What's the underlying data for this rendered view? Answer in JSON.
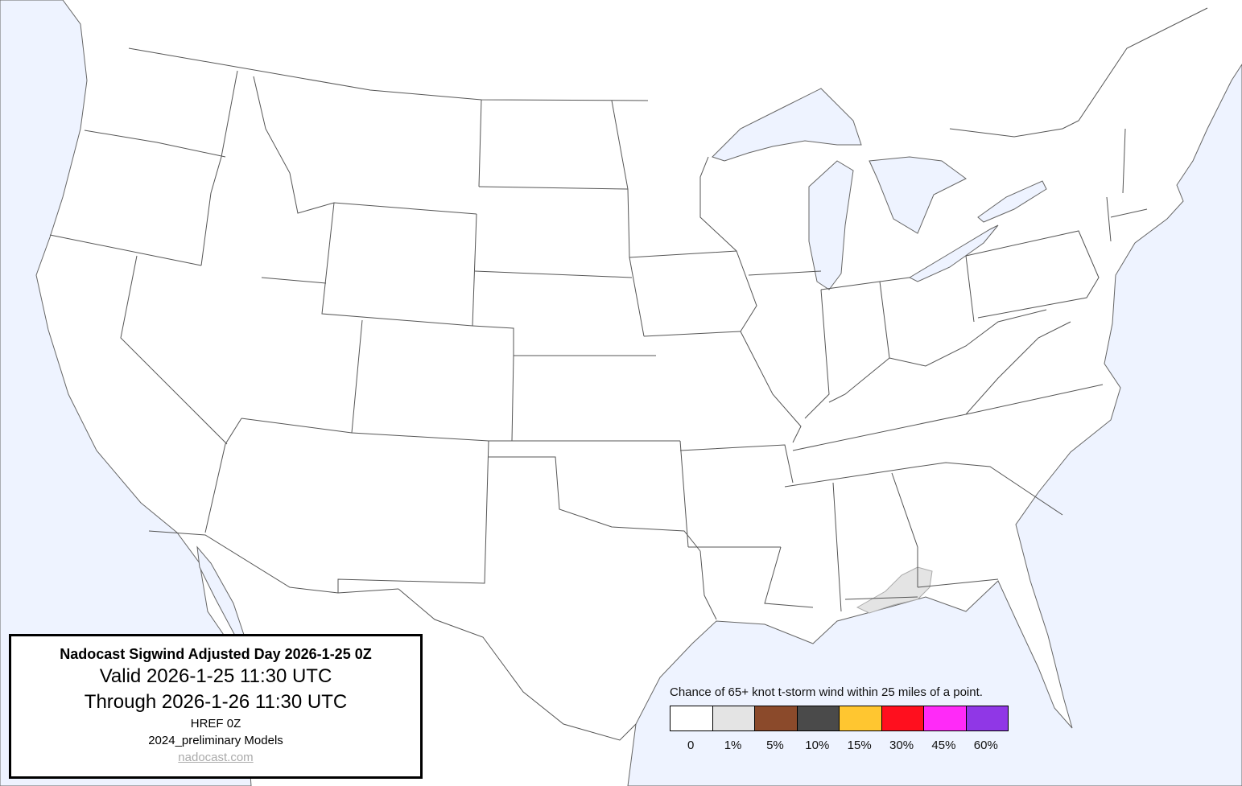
{
  "title_box": {
    "title": "Nadocast Sigwind Adjusted Day 2026-1-25 0Z",
    "valid": "Valid 2026-1-25 11:30 UTC",
    "through": "Through 2026-1-26 11:30 UTC",
    "model": "HREF 0Z",
    "models_version": "2024_preliminary Models",
    "link": "nadocast.com"
  },
  "legend": {
    "title": "Chance of 65+ knot t-storm wind within 25 miles of a point.",
    "items": [
      {
        "label": "0",
        "color": "#ffffff"
      },
      {
        "label": "1%",
        "color": "#e4e4e4"
      },
      {
        "label": "5%",
        "color": "#8b4a2b"
      },
      {
        "label": "10%",
        "color": "#4a4a4a"
      },
      {
        "label": "15%",
        "color": "#ffc630"
      },
      {
        "label": "30%",
        "color": "#ff0f1e"
      },
      {
        "label": "45%",
        "color": "#ff2af8"
      },
      {
        "label": "60%",
        "color": "#9037e6"
      }
    ]
  },
  "map": {
    "water_color": "#eef3ff",
    "land_color": "#ffffff",
    "border_color": "#555555",
    "forecast_areas": [
      {
        "probability": "1%",
        "region": "Florida Panhandle / SE Alabama / SW Georgia"
      }
    ]
  }
}
